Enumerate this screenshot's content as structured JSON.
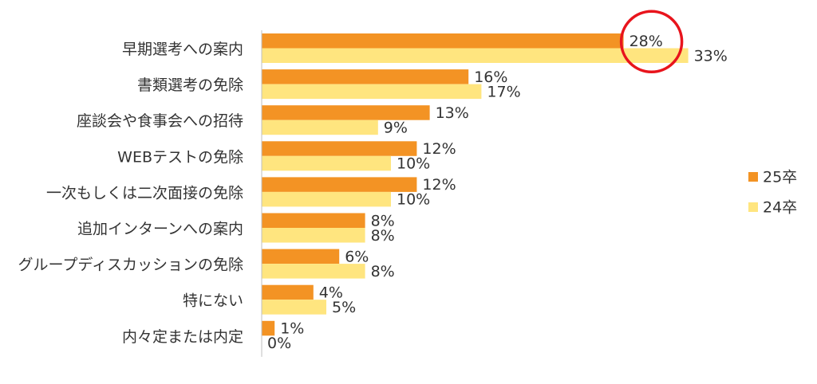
{
  "chart_data": {
    "type": "bar",
    "orientation": "horizontal",
    "categories": [
      "早期選考への案内",
      "書類選考の免除",
      "座談会や食事会への招待",
      "WEBテストの免除",
      "一次もしくは二次面接の免除",
      "追加インターンへの案内",
      "グループディスカッションの免除",
      "特にない",
      "内々定または内定"
    ],
    "series": [
      {
        "name": "25卒",
        "color": "#F39324",
        "values": [
          28,
          16,
          13,
          12,
          12,
          8,
          6,
          4,
          1
        ]
      },
      {
        "name": "24卒",
        "color": "#FFE57F",
        "values": [
          33,
          17,
          9,
          10,
          10,
          8,
          8,
          5,
          0
        ]
      }
    ],
    "value_suffix": "%",
    "xlim": [
      0,
      35
    ],
    "grid": false,
    "legend_position": "right",
    "highlight": {
      "series": 0,
      "category": 0,
      "style": "circle",
      "color": "#E8141C"
    }
  }
}
